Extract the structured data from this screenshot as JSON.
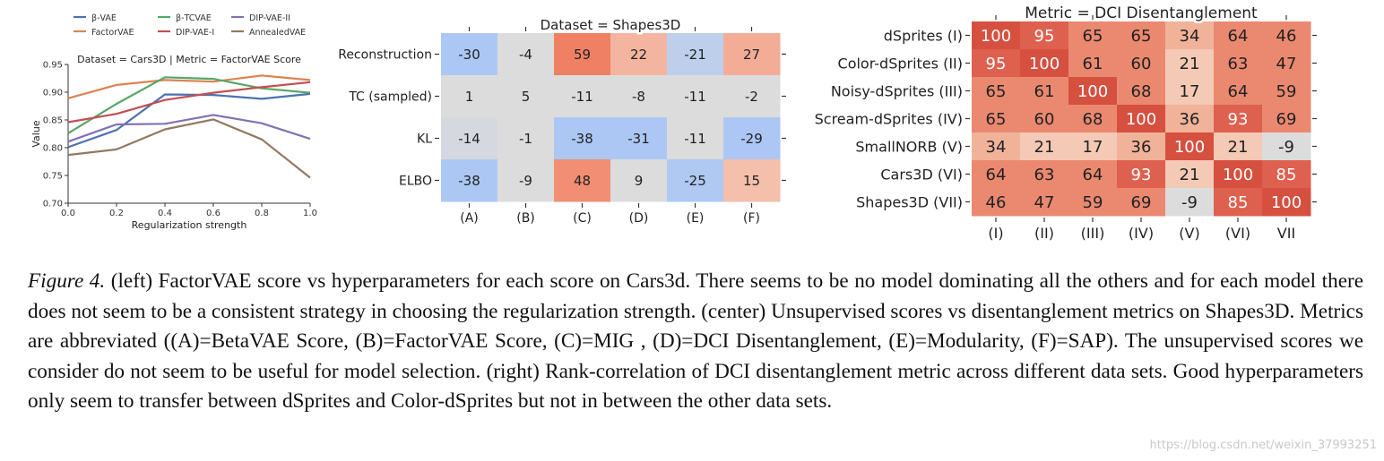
{
  "left": {
    "chart_data": {
      "type": "line",
      "title": "Dataset = Cars3D | Metric = FactorVAE Score",
      "xlabel": "Regularization strength",
      "ylabel": "Value",
      "xlim": [
        0.0,
        1.0
      ],
      "ylim": [
        0.7,
        0.95
      ],
      "x": [
        0.0,
        0.2,
        0.4,
        0.6,
        0.8,
        1.0
      ],
      "x_ticks": [
        "0.0",
        "0.2",
        "0.4",
        "0.6",
        "0.8",
        "1.0"
      ],
      "y_ticks": [
        0.7,
        0.75,
        0.8,
        0.85,
        0.9,
        0.95
      ],
      "y_tick_labels": [
        "0.70",
        "0.75",
        "0.80",
        "0.85",
        "0.90",
        "0.95"
      ],
      "legend_placement": "top",
      "series": [
        {
          "name": "β-VAE",
          "color": "#4c72b0",
          "values": [
            0.801,
            0.832,
            0.896,
            0.895,
            0.888,
            0.897
          ]
        },
        {
          "name": "FactorVAE",
          "color": "#dd8452",
          "values": [
            0.889,
            0.913,
            0.922,
            0.919,
            0.93,
            0.922
          ]
        },
        {
          "name": "β-TCVAE",
          "color": "#55a868",
          "values": [
            0.826,
            0.879,
            0.927,
            0.924,
            0.907,
            0.899
          ]
        },
        {
          "name": "DIP-VAE-I",
          "color": "#c44e52",
          "values": [
            0.846,
            0.861,
            0.886,
            0.899,
            0.909,
            0.918
          ]
        },
        {
          "name": "DIP-VAE-II",
          "color": "#8172b3",
          "values": [
            0.811,
            0.842,
            0.843,
            0.859,
            0.844,
            0.816
          ]
        },
        {
          "name": "AnnealedVAE",
          "color": "#937860",
          "values": [
            0.787,
            0.797,
            0.833,
            0.851,
            0.815,
            0.746
          ]
        }
      ]
    }
  },
  "center": {
    "chart_data": {
      "type": "heatmap",
      "title": "Dataset = Shapes3D",
      "rows": [
        "Reconstruction",
        "TC (sampled)",
        "KL",
        "ELBO"
      ],
      "cols": [
        "(A)",
        "(B)",
        "(C)",
        "(D)",
        "(E)",
        "(F)"
      ],
      "values": [
        [
          -30,
          -4,
          59,
          22,
          -21,
          27
        ],
        [
          1,
          5,
          -11,
          -8,
          -11,
          -2
        ],
        [
          -14,
          -1,
          -38,
          -31,
          -11,
          -29
        ],
        [
          -38,
          -9,
          48,
          9,
          -25,
          15
        ]
      ]
    }
  },
  "right": {
    "chart_data": {
      "type": "heatmap",
      "title": "Metric = DCI Disentanglement",
      "rows": [
        "dSprites (I)",
        "Color-dSprites (II)",
        "Noisy-dSprites (III)",
        "Scream-dSprites (IV)",
        "SmallNORB (V)",
        "Cars3D (VI)",
        "Shapes3D (VII)"
      ],
      "cols": [
        "(I)",
        "(II)",
        "(III)",
        "(IV)",
        "(V)",
        "(VI)",
        "VII"
      ],
      "values": [
        [
          100,
          95,
          65,
          65,
          34,
          64,
          46
        ],
        [
          95,
          100,
          61,
          60,
          21,
          63,
          47
        ],
        [
          65,
          61,
          100,
          68,
          17,
          64,
          59
        ],
        [
          65,
          60,
          68,
          100,
          36,
          93,
          69
        ],
        [
          34,
          21,
          17,
          36,
          100,
          21,
          -9
        ],
        [
          64,
          63,
          64,
          93,
          21,
          100,
          85
        ],
        [
          46,
          47,
          59,
          69,
          -9,
          85,
          100
        ]
      ]
    }
  },
  "caption": {
    "label": "Figure 4.",
    "text": " (left) FactorVAE score vs hyperparameters for each score on Cars3d. There seems to be no model dominating all the others and for each model there does not seem to be a consistent strategy in choosing the regularization strength. (center) Unsupervised scores vs disentanglement metrics on Shapes3D. Metrics are abbreviated ((A)=BetaVAE Score, (B)=FactorVAE Score, (C)=MIG , (D)=DCI Disentanglement, (E)=Modularity, (F)=SAP). The unsupervised scores we consider do not seem to be useful for model selection. (right) Rank-correlation of DCI disentanglement metric across different data sets. Good hyperparameters only seem to transfer between dSprites and Color-dSprites but not in between the other data sets."
  },
  "watermark": "https://blog.csdn.net/weixin_37993251"
}
